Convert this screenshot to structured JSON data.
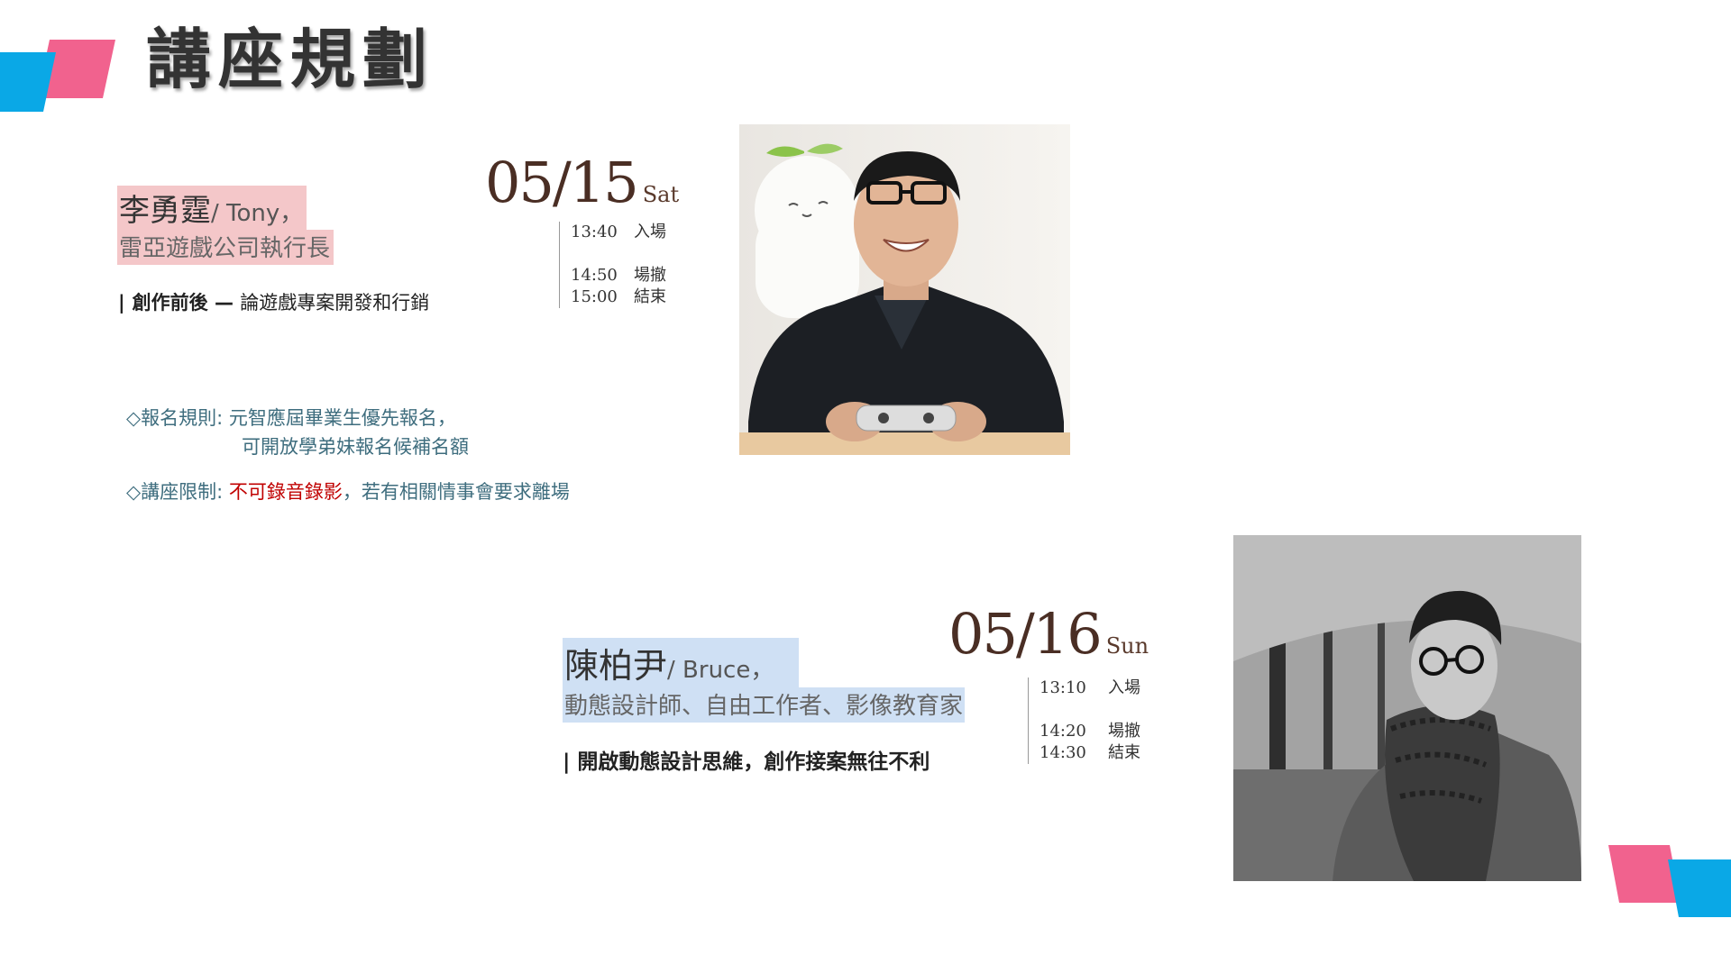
{
  "page": {
    "title": "講座規劃"
  },
  "colors": {
    "accent_blue": "#0aa8e6",
    "accent_pink": "#f1628e",
    "date_brown": "#4a2e24",
    "rule_text": "#3e6d7e",
    "warning_red": "#c00000"
  },
  "sessions": [
    {
      "speaker_name": "李勇霆",
      "speaker_en": "/ Tony，",
      "speaker_role": "雷亞遊戲公司執行長",
      "topic_bar": "|",
      "topic_main": "創作前後",
      "topic_dash": " — ",
      "topic_sub": "論遊戲專案開發和行銷",
      "date": "05/15",
      "day": "Sat",
      "schedule": [
        {
          "time": "13:40",
          "label": "入場"
        },
        {
          "time": "14:50",
          "label": "場撤"
        },
        {
          "time": "15:00",
          "label": "結束"
        }
      ],
      "photo_icon": "speaker-photo-tony"
    },
    {
      "speaker_name": "陳柏尹",
      "speaker_en": "/ Bruce，",
      "speaker_role": "動態設計師、自由工作者、影像教育家",
      "topic_bar": "|",
      "topic_main": "開啟動態設計思維，創作接案無往不利",
      "date": "05/16",
      "day": "Sun",
      "schedule": [
        {
          "time": "13:10",
          "label": "入場"
        },
        {
          "time": "14:20",
          "label": "場撤"
        },
        {
          "time": "14:30",
          "label": "結束"
        }
      ],
      "photo_icon": "speaker-photo-bruce"
    }
  ],
  "rules": {
    "registration_label": "◇報名規則: ",
    "registration_line1": "元智應屆畢業生優先報名，",
    "registration_line2": "可開放學弟妹報名候補名額",
    "restriction_label": "◇講座限制: ",
    "restriction_warning": "不可錄音錄影",
    "restriction_rest": "，若有相關情事會要求離場"
  }
}
